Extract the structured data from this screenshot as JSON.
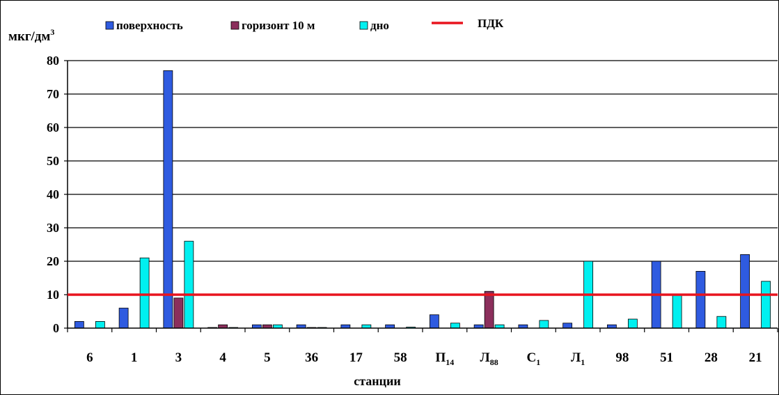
{
  "chart_data": {
    "type": "bar",
    "ylabel": "мкг/дм",
    "ylabel_sup": "3",
    "xlabel": "станции",
    "ylim": [
      0,
      80
    ],
    "yticks": [
      0,
      10,
      20,
      30,
      40,
      50,
      60,
      70,
      80
    ],
    "grid": true,
    "legend_position": "top",
    "categories": [
      {
        "main": "6",
        "sub": ""
      },
      {
        "main": "1",
        "sub": ""
      },
      {
        "main": "3",
        "sub": ""
      },
      {
        "main": "4",
        "sub": ""
      },
      {
        "main": "5",
        "sub": ""
      },
      {
        "main": "36",
        "sub": ""
      },
      {
        "main": "17",
        "sub": ""
      },
      {
        "main": "58",
        "sub": ""
      },
      {
        "main": "П",
        "sub": "14"
      },
      {
        "main": "Л",
        "sub": "88"
      },
      {
        "main": "С",
        "sub": "1"
      },
      {
        "main": "Л",
        "sub": "1"
      },
      {
        "main": "98",
        "sub": ""
      },
      {
        "main": "51",
        "sub": ""
      },
      {
        "main": "28",
        "sub": ""
      },
      {
        "main": "21",
        "sub": ""
      }
    ],
    "series": [
      {
        "name": "поверхность",
        "color": "#2f5be0",
        "values": [
          2,
          6,
          77,
          0.2,
          1,
          1,
          1,
          1,
          4,
          1,
          1,
          1.5,
          1,
          20,
          17,
          22
        ]
      },
      {
        "name": "горизонт 10 м",
        "color": "#8b2f5c",
        "values": [
          0,
          0,
          9,
          1,
          1,
          0.2,
          0,
          0,
          0,
          11,
          0,
          0,
          0,
          0,
          0,
          0
        ]
      },
      {
        "name": "дно",
        "color": "#00f0f0",
        "values": [
          2,
          21,
          26,
          0.2,
          1,
          0.2,
          1,
          0.3,
          1.5,
          1,
          2.3,
          20,
          2.7,
          10,
          3.5,
          14
        ]
      }
    ],
    "threshold": {
      "name": "ПДК",
      "value": 10,
      "color": "#e8141e"
    }
  }
}
